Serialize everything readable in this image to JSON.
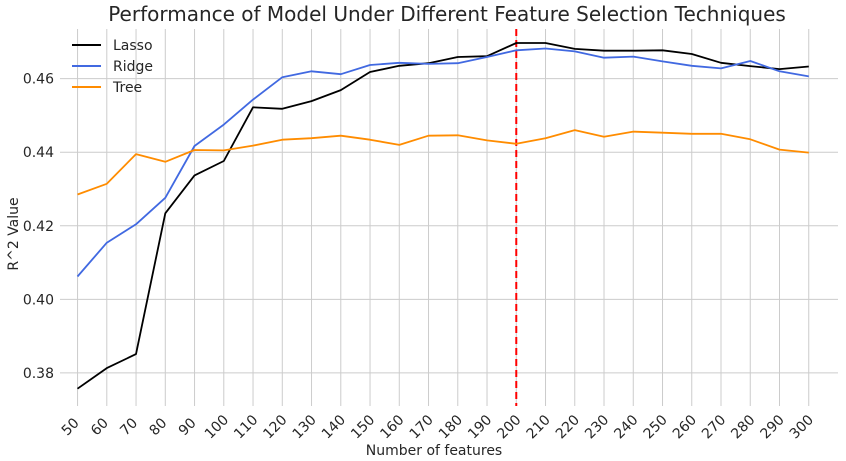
{
  "chart_data": {
    "type": "line",
    "title": "Performance of Model Under Different Feature Selection Techniques",
    "xlabel": "Number of features",
    "ylabel": "R^2 Value",
    "x": [
      50,
      60,
      70,
      80,
      90,
      100,
      110,
      120,
      130,
      140,
      150,
      160,
      170,
      180,
      190,
      200,
      210,
      220,
      230,
      240,
      250,
      260,
      270,
      280,
      290,
      300
    ],
    "xlim": [
      44,
      310
    ],
    "ylim": [
      0.371,
      0.4735
    ],
    "yticks": [
      0.38,
      0.4,
      0.42,
      0.44,
      0.46
    ],
    "ytick_labels": [
      "0.38",
      "0.40",
      "0.42",
      "0.44",
      "0.46"
    ],
    "xtick_labels": [
      "50",
      "60",
      "70",
      "80",
      "90",
      "100",
      "110",
      "120",
      "130",
      "140",
      "150",
      "160",
      "170",
      "180",
      "190",
      "200",
      "210",
      "220",
      "230",
      "240",
      "250",
      "260",
      "270",
      "280",
      "290",
      "300"
    ],
    "grid": true,
    "legend_position": "top-left",
    "series": [
      {
        "name": "Lasso",
        "color": "#000000",
        "values": [
          0.3757,
          0.3813,
          0.3851,
          0.4234,
          0.4337,
          0.4376,
          0.4522,
          0.4518,
          0.4539,
          0.4569,
          0.4618,
          0.4635,
          0.4642,
          0.4659,
          0.4661,
          0.4697,
          0.4697,
          0.4681,
          0.4676,
          0.4676,
          0.4677,
          0.4667,
          0.4643,
          0.4634,
          0.4626,
          0.4633
        ]
      },
      {
        "name": "Ridge",
        "color": "#4169e1",
        "values": [
          0.4062,
          0.4154,
          0.4204,
          0.4276,
          0.4417,
          0.4475,
          0.4543,
          0.4604,
          0.462,
          0.4612,
          0.4637,
          0.4643,
          0.464,
          0.4642,
          0.4659,
          0.4677,
          0.4682,
          0.4674,
          0.4657,
          0.466,
          0.4647,
          0.4635,
          0.4628,
          0.4648,
          0.462,
          0.4606
        ]
      },
      {
        "name": "Tree",
        "color": "#ff8c00",
        "values": [
          0.4285,
          0.4314,
          0.4395,
          0.4374,
          0.4406,
          0.4405,
          0.4418,
          0.4434,
          0.4438,
          0.4445,
          0.4434,
          0.442,
          0.4445,
          0.4446,
          0.4432,
          0.4423,
          0.4438,
          0.446,
          0.4442,
          0.4456,
          0.4453,
          0.445,
          0.445,
          0.4435,
          0.4407,
          0.4399
        ]
      }
    ],
    "vline": {
      "x": 200,
      "color": "#ff0000",
      "style": "dashed"
    }
  }
}
